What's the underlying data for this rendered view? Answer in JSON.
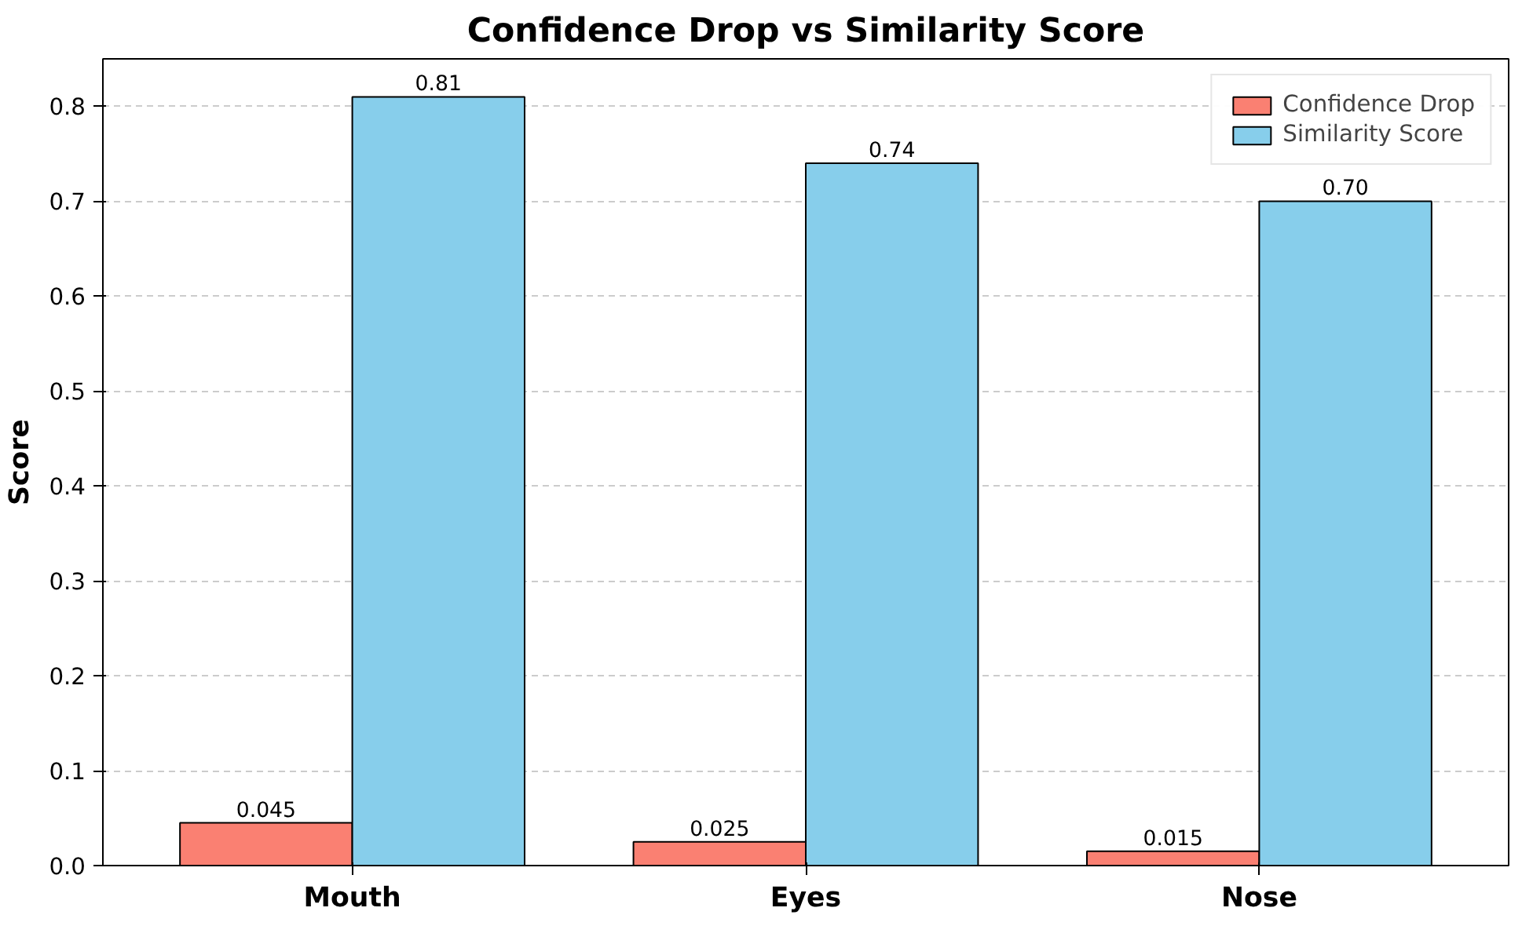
{
  "chart_data": {
    "type": "bar",
    "title": "Confidence Drop vs Similarity Score",
    "ylabel": "Score",
    "categories": [
      "Mouth",
      "Eyes",
      "Nose"
    ],
    "series": [
      {
        "name": "Confidence Drop",
        "color": "#fa8072",
        "values": [
          0.045,
          0.025,
          0.015
        ],
        "value_labels": [
          "0.045",
          "0.025",
          "0.015"
        ]
      },
      {
        "name": "Similarity Score",
        "color": "#87ceeb",
        "values": [
          0.81,
          0.74,
          0.7
        ],
        "value_labels": [
          "0.81",
          "0.74",
          "0.70"
        ]
      }
    ],
    "ylim": [
      0,
      0.85
    ],
    "yticks": [
      {
        "value": 0,
        "label": "0.0"
      },
      0.1,
      0.2,
      0.3,
      0.4,
      0.5,
      0.6,
      0.7,
      0.8
    ],
    "grid": "y",
    "legend": "top right"
  }
}
